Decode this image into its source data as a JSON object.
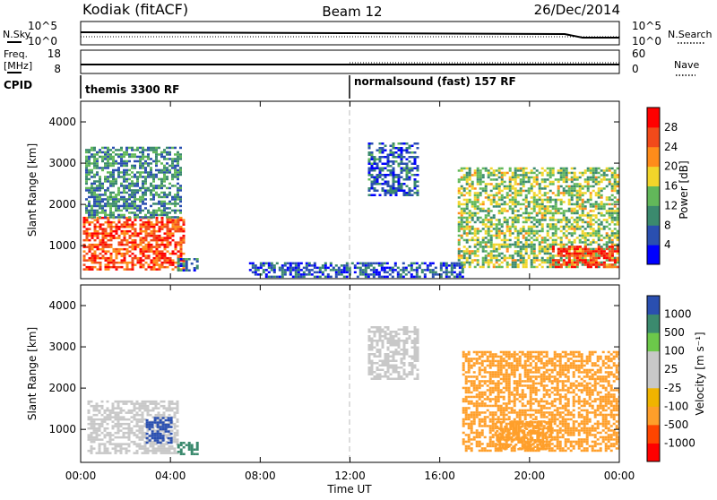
{
  "header": {
    "station": "Kodiak (fitACF)",
    "beam": "Beam 12",
    "date": "26/Dec/2014"
  },
  "strips": {
    "nsky_label": "N.Sky",
    "nsky_ticks": [
      "10^5",
      "10^0"
    ],
    "nsearch_label": "N.Search",
    "nsearch_ticks": [
      "10^5",
      "10^0"
    ],
    "freq_label_1": "Freq.",
    "freq_label_2": "[MHz]",
    "freq_ticks": [
      "18",
      "8"
    ],
    "nave_label": "Nave",
    "nave_ticks": [
      "60",
      "0"
    ],
    "cpid_label": "CPID",
    "cpid_modes": [
      "themis 3300 RF",
      "normalsound (fast) 157 RF"
    ]
  },
  "axes": {
    "x_label": "Time UT",
    "x_ticks": [
      "00:00",
      "04:00",
      "08:00",
      "12:00",
      "16:00",
      "20:00",
      "00:00"
    ],
    "y_label": "Slant Range [km]",
    "y_ticks": [
      "1000",
      "2000",
      "3000",
      "4000"
    ]
  },
  "colors": {
    "power_scale": [
      "#0000ff",
      "#2a4fb0",
      "#3b8a6e",
      "#62b85a",
      "#f2d52a",
      "#ff8c1a",
      "#f24a1a",
      "#ff0000"
    ],
    "velocity_scale": [
      "#ff0000",
      "#ff4500",
      "#ff9f2a",
      "#f0b400",
      "#c8c8c8",
      "#c8c8c8",
      "#6cc84a",
      "#3b8a6e",
      "#2a4fb0"
    ],
    "ground_scatter": "#c8c8c8"
  },
  "chart_data": [
    {
      "type": "heatmap",
      "name": "power",
      "xlabel": "Time UT",
      "ylabel": "Slant Range [km]",
      "xlim": [
        0,
        24
      ],
      "ylim": [
        200,
        4500
      ],
      "colorbar_label": "Power [dB]",
      "colorbar_ticks": [
        "4",
        "8",
        "12",
        "16",
        "20",
        "24",
        "28"
      ],
      "color_range": [
        0,
        32
      ],
      "regions": [
        {
          "t0": 0.1,
          "t1": 4.6,
          "r0": 400,
          "r1": 1700,
          "level": 26
        },
        {
          "t0": 0.2,
          "t1": 4.4,
          "r0": 1700,
          "r1": 3400,
          "level": 10
        },
        {
          "t0": 4.3,
          "t1": 5.2,
          "r0": 400,
          "r1": 700,
          "level": 8
        },
        {
          "t0": 12.8,
          "t1": 15.0,
          "r0": 2200,
          "r1": 3500,
          "level": 7
        },
        {
          "t0": 7.5,
          "t1": 17.0,
          "r0": 250,
          "r1": 600,
          "level": 6
        },
        {
          "t0": 16.8,
          "t1": 24.0,
          "r0": 500,
          "r1": 2900,
          "level": 15
        },
        {
          "t0": 21.0,
          "t1": 24.0,
          "r0": 500,
          "r1": 1000,
          "level": 27
        }
      ]
    },
    {
      "type": "heatmap",
      "name": "velocity",
      "xlabel": "Time UT",
      "ylabel": "Slant Range [km]",
      "xlim": [
        0,
        24
      ],
      "ylim": [
        200,
        4500
      ],
      "colorbar_label": "Velocity [m s⁻¹]",
      "colorbar_ticks": [
        "1000",
        "500",
        "100",
        "25",
        "-25",
        "-100",
        "-500",
        "-1000"
      ],
      "regions": [
        {
          "t0": 0.3,
          "t1": 4.3,
          "r0": 400,
          "r1": 1700,
          "level": 0
        },
        {
          "t0": 2.9,
          "t1": 4.0,
          "r0": 700,
          "r1": 1300,
          "level": 800
        },
        {
          "t0": 4.3,
          "t1": 5.2,
          "r0": 400,
          "r1": 700,
          "level": 150
        },
        {
          "t0": 12.8,
          "t1": 15.0,
          "r0": 2200,
          "r1": 3500,
          "level": 0
        },
        {
          "t0": 17.0,
          "t1": 24.0,
          "r0": 500,
          "r1": 2900,
          "level": -150
        },
        {
          "t0": 18.5,
          "t1": 21.0,
          "r0": 500,
          "r1": 1200,
          "level": -400
        }
      ]
    }
  ]
}
